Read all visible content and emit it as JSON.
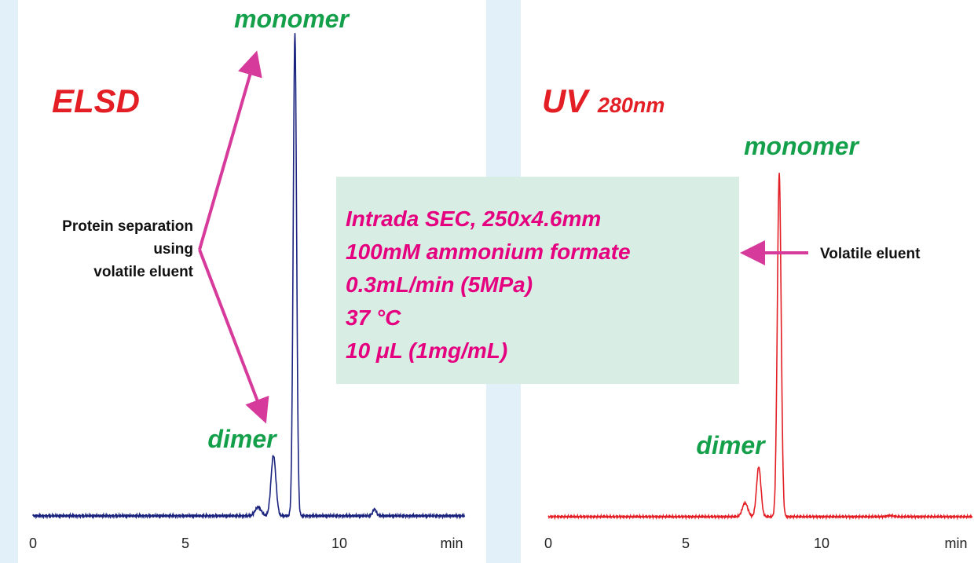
{
  "colors": {
    "background": "#e2f1f9",
    "panel": "#ffffff",
    "elsd_trace": "#1a237e",
    "uv_trace": "#e31e24",
    "peak_label": "#14a04b",
    "detector_label": "#e31e24",
    "annotation_arrow": "#d63a9a",
    "conditions_text": "#e4007f",
    "conditions_box": "#d8ede4"
  },
  "conditions": {
    "lines": [
      "Intrada SEC, 250x4.6mm",
      "100mM ammonium formate",
      "0.3mL/min (5MPa)",
      "37 °C",
      "10 μL (1mg/mL)"
    ]
  },
  "annotations": {
    "left_note": [
      "Protein separation",
      "using",
      "volatile eluent"
    ],
    "right_note": "Volatile eluent"
  },
  "chart_data": [
    {
      "type": "line",
      "detector": {
        "main": "ELSD",
        "sub": ""
      },
      "xlabel": "min",
      "x_ticks": [
        "0",
        "5",
        "10"
      ],
      "xlim": [
        0,
        14.5
      ],
      "ylim": [
        0,
        100
      ],
      "grid": false,
      "peak_labels": [
        {
          "text": "monomer",
          "x": 8.6
        },
        {
          "text": "dimer",
          "x": 7.9
        }
      ],
      "series": [
        {
          "peaks": [
            {
              "x": 7.35,
              "height": 1.8,
              "width": 0.1
            },
            {
              "x": 7.85,
              "height": 12.5,
              "width": 0.08
            },
            {
              "x": 8.55,
              "height": 100,
              "width": 0.055
            },
            {
              "x": 11.15,
              "height": 1.4,
              "width": 0.06
            }
          ]
        }
      ]
    },
    {
      "type": "line",
      "detector": {
        "main": "UV",
        "sub": "280nm"
      },
      "xlabel": "min",
      "x_ticks": [
        "0",
        "5",
        "10"
      ],
      "xlim": [
        0,
        14.5
      ],
      "ylim": [
        0,
        100
      ],
      "grid": false,
      "peak_labels": [
        {
          "text": "monomer",
          "x": 8.4
        },
        {
          "text": "dimer",
          "x": 7.45
        }
      ],
      "series": [
        {
          "peaks": [
            {
              "x": 7.2,
              "height": 4,
              "width": 0.1
            },
            {
              "x": 7.7,
              "height": 14.5,
              "width": 0.08
            },
            {
              "x": 8.45,
              "height": 100,
              "width": 0.07
            },
            {
              "x": 12.5,
              "height": 0.3,
              "width": 0.12
            }
          ]
        }
      ]
    }
  ]
}
